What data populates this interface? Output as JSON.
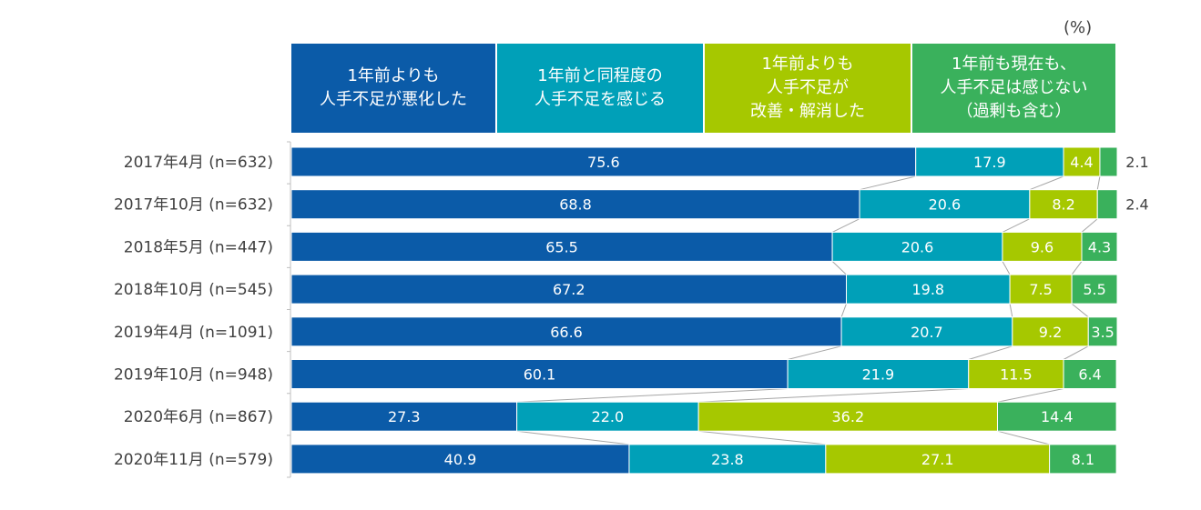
{
  "unit_label": "(%)",
  "chart_data": {
    "type": "bar",
    "orientation": "horizontal",
    "stacked": true,
    "xlim": [
      0,
      100
    ],
    "grid": false,
    "legend_position": "top",
    "categories": [
      "2017年4月 (n=632)",
      "2017年10月 (n=632)",
      "2018年5月 (n=447)",
      "2018年10月 (n=545)",
      "2019年4月 (n=1091)",
      "2019年10月 (n=948)",
      "2020年6月 (n=867)",
      "2020年11月 (n=579)"
    ],
    "series": [
      {
        "name": "1年前よりも\n人手不足が悪化した",
        "color": "#0b5ba8",
        "values": [
          75.6,
          68.8,
          65.5,
          67.2,
          66.6,
          60.1,
          27.3,
          40.9
        ]
      },
      {
        "name": "1年前と同程度の\n人手不足を感じる",
        "color": "#00a0b8",
        "values": [
          17.9,
          20.6,
          20.6,
          19.8,
          20.7,
          21.9,
          22.0,
          23.8
        ]
      },
      {
        "name": "1年前よりも\n人手不足が\n改善・解消した",
        "color": "#a6c800",
        "values": [
          4.4,
          8.2,
          9.6,
          7.5,
          9.2,
          11.5,
          36.2,
          27.1
        ]
      },
      {
        "name": "1年前も現在も、\n人手不足は感じない\n（過剰も含む）",
        "color": "#3ab15c",
        "values": [
          2.1,
          2.4,
          4.3,
          5.5,
          3.5,
          6.4,
          14.4,
          8.1
        ]
      }
    ],
    "value_labels": [
      [
        "75.6",
        "68.8",
        "65.5",
        "67.2",
        "66.6",
        "60.1",
        "27.3",
        "40.9"
      ],
      [
        "17.9",
        "20.6",
        "20.6",
        "19.8",
        "20.7",
        "21.9",
        "22.0",
        "23.8"
      ],
      [
        "4.4",
        "8.2",
        "9.6",
        "7.5",
        "9.2",
        "11.5",
        "36.2",
        "27.1"
      ],
      [
        "2.1",
        "2.4",
        "4.3",
        "5.5",
        "3.5",
        "6.4",
        "14.4",
        "8.1"
      ]
    ],
    "connector_lines": true
  }
}
